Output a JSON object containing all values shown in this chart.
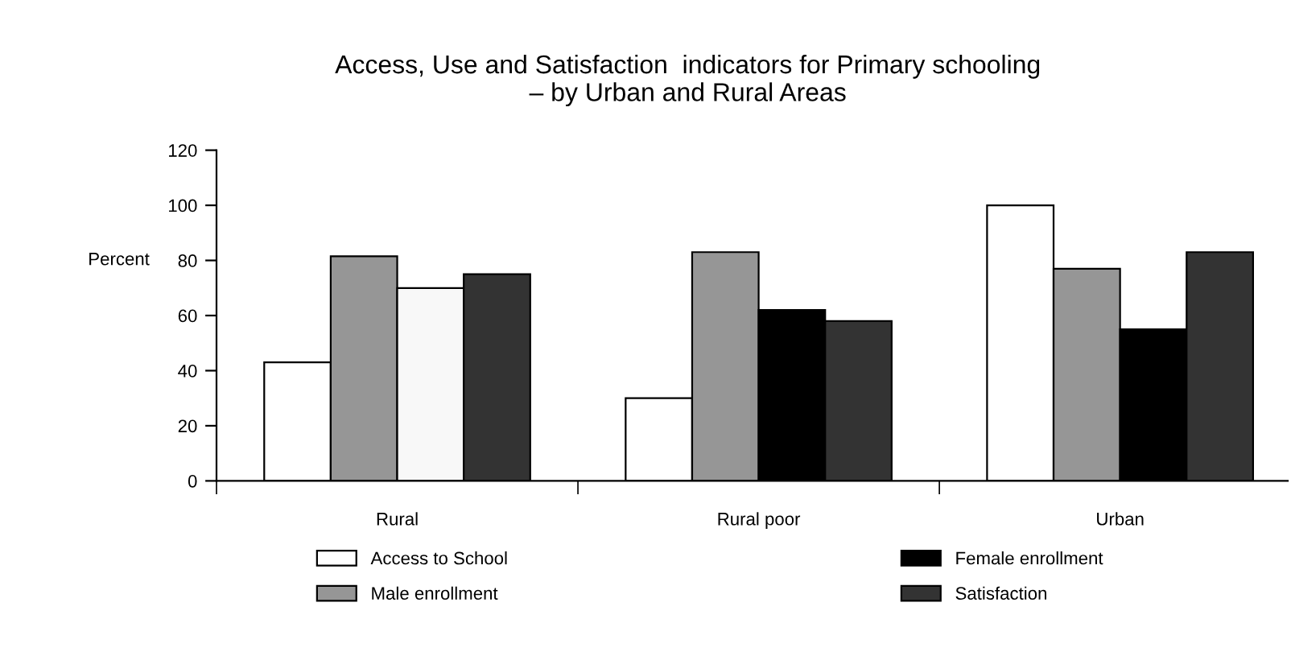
{
  "chart_data": {
    "type": "bar",
    "title": "Access, Use and Satisfaction  indicators for Primary schooling\n– by Urban and Rural Areas",
    "ylabel": "Percent",
    "categories": [
      "Rural",
      "Rural poor",
      "Urban"
    ],
    "series": [
      {
        "name": "Access to School",
        "color": "#ffffff",
        "values": [
          43,
          30,
          100
        ]
      },
      {
        "name": "Male enrollment",
        "color": "#969696",
        "values": [
          81.5,
          83,
          77
        ]
      },
      {
        "name": "Female enrollment",
        "color": "#000000",
        "colors": [
          "#f8f8f8",
          "#000000",
          "#000000"
        ],
        "values": [
          70,
          62,
          55
        ]
      },
      {
        "name": "Satisfaction",
        "color": "#333333",
        "values": [
          75,
          58,
          83
        ]
      }
    ],
    "ylim": [
      0,
      120
    ],
    "yticks": [
      0,
      20,
      40,
      60,
      80,
      100,
      120
    ],
    "grid": false,
    "legend": "bottom"
  }
}
